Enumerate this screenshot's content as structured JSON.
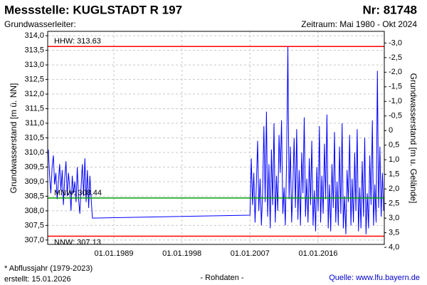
{
  "header": {
    "station": "Messstelle: KUGLSTADT R 197",
    "number": "Nr: 81748",
    "aquifer": "Grundwasserleiter:",
    "period": "Zeitraum: Mai 1980 - Okt 2024"
  },
  "footer": {
    "note": "* Abflussjahr (1979-2023)",
    "created": "erstellt:  15.01.2026",
    "kind": "- Rohdaten -",
    "source": "Quelle: www.lfu.bayern.de"
  },
  "chart_data": {
    "type": "line",
    "ylabel": "Grundwasserstand [m ü. NN]",
    "y2label": "Grundwasserstand [m u. Gelände]",
    "xlim": [
      "1980-04-01",
      "2024-10-01"
    ],
    "xticks": [
      {
        "value": "1989-01-01",
        "label": "01.01.1989"
      },
      {
        "value": "1998-01-01",
        "label": "01.01.1998"
      },
      {
        "value": "2007-01-01",
        "label": "01.01.2007"
      },
      {
        "value": "2016-01-01",
        "label": "01.01.2016"
      }
    ],
    "ylim": [
      306.85,
      314.15
    ],
    "yticks": [
      {
        "value": 307,
        "label": "307,0"
      },
      {
        "value": 307.5,
        "label": "307,5"
      },
      {
        "value": 308,
        "label": "308,0"
      },
      {
        "value": 308.5,
        "label": "308,5"
      },
      {
        "value": 309,
        "label": "309,0"
      },
      {
        "value": 309.5,
        "label": "309,5"
      },
      {
        "value": 310,
        "label": "310,0"
      },
      {
        "value": 310.5,
        "label": "310,5"
      },
      {
        "value": 311,
        "label": "311,0"
      },
      {
        "value": 311.5,
        "label": "311,5"
      },
      {
        "value": 312,
        "label": "312,0"
      },
      {
        "value": 312.5,
        "label": "312,5"
      },
      {
        "value": 313,
        "label": "313,0"
      },
      {
        "value": 313.5,
        "label": "313,5"
      },
      {
        "value": 314,
        "label": "314,0"
      }
    ],
    "y2lim": [
      3.9,
      -3.4
    ],
    "y2ticks": [
      {
        "value": -3,
        "label": "-3,0"
      },
      {
        "value": -2.5,
        "label": "-2,5"
      },
      {
        "value": -2,
        "label": "-2,0"
      },
      {
        "value": -1.5,
        "label": "-1,5"
      },
      {
        "value": -1,
        "label": "-1,0"
      },
      {
        "value": -0.5,
        "label": "-0,5"
      },
      0,
      {
        "value": 0.5,
        "label": "0,5"
      },
      {
        "value": 1,
        "label": "1,0"
      },
      {
        "value": 1.5,
        "label": "1,5"
      },
      {
        "value": 2,
        "label": "2,0"
      },
      {
        "value": 2.5,
        "label": "2,5"
      },
      {
        "value": 3,
        "label": "3,0"
      },
      {
        "value": 3.5,
        "label": "3,5"
      },
      {
        "value": 4,
        "label": "4,0"
      }
    ],
    "grid": true,
    "reference_lines": [
      {
        "label": "HHW: 313.63",
        "value": 313.63,
        "color": "#ff0000"
      },
      {
        "label": "MNW: 308.44",
        "value": 308.44,
        "color": "#00a000"
      },
      {
        "label": "NNW: 307.13",
        "value": 307.13,
        "color": "#ff0000"
      }
    ],
    "series": [
      {
        "color": "#0000ff",
        "x": [
          "1980-05",
          "1980-07",
          "1980-09",
          "1980-11",
          "1981-01",
          "1981-03",
          "1981-05",
          "1981-07",
          "1981-09",
          "1981-11",
          "1982-01",
          "1982-03",
          "1982-05",
          "1982-07",
          "1982-09",
          "1982-11",
          "1983-01",
          "1983-03",
          "1983-05",
          "1983-07",
          "1983-09",
          "1983-11",
          "1984-01",
          "1984-03",
          "1984-05",
          "1984-07",
          "1984-09",
          "1984-11",
          "1985-01",
          "1985-03",
          "1985-05",
          "1985-07",
          "1985-09",
          "1985-11",
          "1986-01",
          "1986-03",
          "2007-01",
          "2007-03",
          "2007-05",
          "2007-07",
          "2007-09",
          "2007-11",
          "2008-01",
          "2008-03",
          "2008-05",
          "2008-07",
          "2008-09",
          "2008-11",
          "2009-01",
          "2009-03",
          "2009-05",
          "2009-07",
          "2009-09",
          "2009-11",
          "2010-01",
          "2010-03",
          "2010-05",
          "2010-07",
          "2010-09",
          "2010-11",
          "2011-01",
          "2011-03",
          "2011-05",
          "2011-07",
          "2011-09",
          "2011-11",
          "2012-01",
          "2012-03",
          "2012-05",
          "2012-07",
          "2012-09",
          "2012-11",
          "2013-01",
          "2013-03",
          "2013-05",
          "2013-07",
          "2013-09",
          "2013-11",
          "2014-01",
          "2014-03",
          "2014-05",
          "2014-07",
          "2014-09",
          "2014-11",
          "2015-01",
          "2015-03",
          "2015-05",
          "2015-07",
          "2015-09",
          "2015-11",
          "2016-01",
          "2016-03",
          "2016-05",
          "2016-07",
          "2016-09",
          "2016-11",
          "2017-01",
          "2017-03",
          "2017-05",
          "2017-07",
          "2017-09",
          "2017-11",
          "2018-01",
          "2018-03",
          "2018-05",
          "2018-07",
          "2018-09",
          "2018-11",
          "2019-01",
          "2019-03",
          "2019-05",
          "2019-07",
          "2019-09",
          "2019-11",
          "2020-01",
          "2020-03",
          "2020-05",
          "2020-07",
          "2020-09",
          "2020-11",
          "2021-01",
          "2021-03",
          "2021-05",
          "2021-07",
          "2021-09",
          "2021-11",
          "2022-01",
          "2022-03",
          "2022-05",
          "2022-07",
          "2022-09",
          "2022-11",
          "2023-01",
          "2023-03",
          "2023-05",
          "2023-07",
          "2023-09",
          "2023-11",
          "2024-01",
          "2024-03",
          "2024-05",
          "2024-07",
          "2024-09"
        ],
        "values": [
          310.1,
          309.2,
          308.6,
          309.5,
          309.9,
          308.9,
          309.3,
          308.4,
          309.0,
          309.6,
          308.7,
          309.4,
          308.2,
          309.1,
          309.7,
          308.5,
          309.3,
          308.8,
          308.0,
          309.2,
          308.6,
          309.0,
          308.3,
          309.5,
          308.4,
          307.9,
          308.8,
          309.6,
          308.5,
          309.8,
          308.3,
          309.4,
          308.1,
          309.2,
          308.4,
          307.75,
          307.85,
          309.8,
          308.2,
          309.3,
          307.6,
          308.9,
          310.4,
          308.0,
          309.1,
          307.5,
          308.6,
          310.9,
          308.3,
          311.4,
          307.8,
          309.6,
          307.4,
          310.1,
          308.2,
          311.0,
          307.6,
          309.2,
          308.0,
          310.6,
          309.3,
          311.1,
          307.9,
          308.8,
          307.5,
          309.7,
          313.63,
          308.4,
          310.2,
          307.6,
          308.9,
          310.5,
          308.1,
          310.8,
          307.7,
          309.4,
          307.5,
          310.0,
          308.6,
          311.2,
          307.8,
          309.1,
          307.6,
          309.8,
          308.2,
          310.4,
          307.5,
          308.7,
          307.3,
          309.5,
          308.0,
          310.9,
          307.6,
          309.2,
          307.9,
          310.3,
          308.4,
          311.3,
          307.4,
          308.9,
          307.3,
          309.6,
          308.1,
          310.7,
          307.6,
          309.0,
          307.5,
          310.2,
          307.9,
          311.0,
          307.4,
          308.5,
          307.2,
          309.4,
          308.3,
          310.6,
          307.5,
          309.1,
          307.6,
          310.0,
          308.0,
          310.8,
          307.3,
          308.8,
          307.4,
          309.7,
          307.8,
          310.5,
          307.2,
          308.6,
          307.4,
          309.9,
          308.2,
          311.1,
          307.5,
          308.9,
          307.6,
          312.8,
          308.1,
          310.2,
          307.8,
          309.3,
          308.0
        ]
      }
    ]
  }
}
